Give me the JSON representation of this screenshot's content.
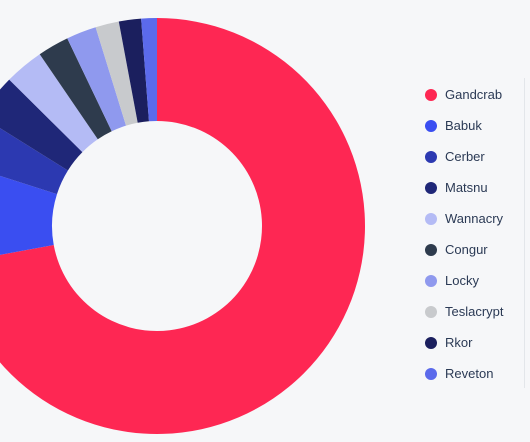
{
  "chart_data": {
    "type": "pie",
    "donut": true,
    "legend_position": "right",
    "series": [
      {
        "name": "Gandcrab",
        "value": 71.1,
        "color": "#fe2753"
      },
      {
        "name": "Babuk",
        "value": 7.7,
        "color": "#3a4ef1"
      },
      {
        "name": "Cerber",
        "value": 3.9,
        "color": "#2c39b1"
      },
      {
        "name": "Matsnu",
        "value": 3.5,
        "color": "#1f2778"
      },
      {
        "name": "Wannacry",
        "value": 3.0,
        "color": "#b4bbf5"
      },
      {
        "name": "Congur",
        "value": 2.4,
        "color": "#2e3b4d"
      },
      {
        "name": "Locky",
        "value": 2.3,
        "color": "#8f99ee"
      },
      {
        "name": "Teslacrypt",
        "value": 1.8,
        "color": "#c8cacd"
      },
      {
        "name": "Rkor",
        "value": 1.7,
        "color": "#1b1f5e"
      },
      {
        "name": "Reveton",
        "value": 1.2,
        "color": "#5b6aeb"
      }
    ]
  }
}
